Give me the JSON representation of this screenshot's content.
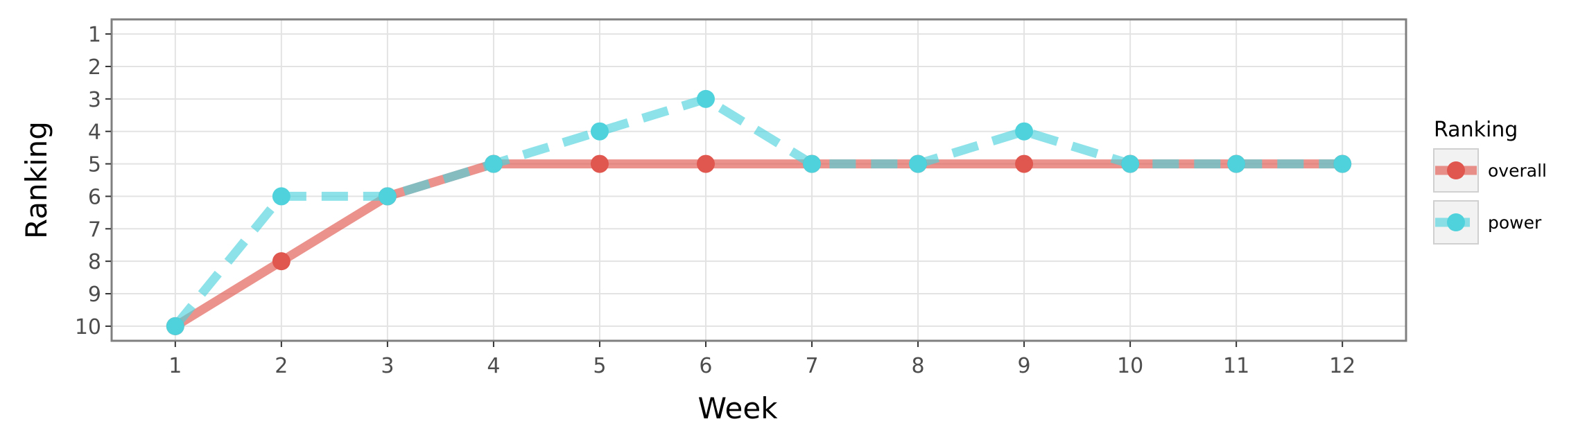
{
  "chart_data": {
    "type": "line",
    "xlabel": "Week",
    "ylabel": "Ranking",
    "x": [
      1,
      2,
      3,
      4,
      5,
      6,
      7,
      8,
      9,
      10,
      11,
      12
    ],
    "xlim": [
      0.4,
      12.6
    ],
    "ylim": [
      10.45,
      0.55
    ],
    "y_reversed": true,
    "y_ticks": [
      1,
      2,
      3,
      4,
      5,
      6,
      7,
      8,
      9,
      10
    ],
    "grid": true,
    "legend": {
      "title": "Ranking",
      "placement": "right"
    },
    "series": [
      {
        "name": "overall",
        "values": [
          10,
          8,
          6,
          5,
          5,
          5,
          5,
          5,
          5,
          5,
          5,
          5
        ],
        "color": "#e0574f",
        "linestyle": "solid"
      },
      {
        "name": "power",
        "values": [
          10,
          6,
          6,
          5,
          4,
          3,
          5,
          5,
          4,
          5,
          5,
          5
        ],
        "color": "#4fd2db",
        "linestyle": "dashed"
      }
    ]
  }
}
